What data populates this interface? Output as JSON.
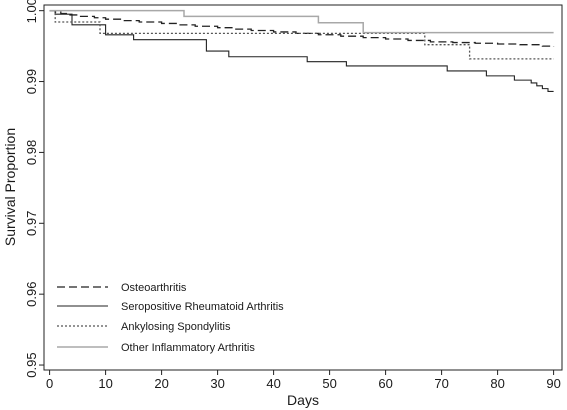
{
  "chart_data": {
    "type": "line",
    "subtype": "step",
    "title": "",
    "xlabel": "Days",
    "ylabel": "Survival Proportion",
    "xlim": [
      -1,
      91.5
    ],
    "ylim": [
      0.9493,
      1.0008
    ],
    "xticks": [
      0,
      10,
      20,
      30,
      40,
      50,
      60,
      70,
      80,
      90
    ],
    "yticks": [
      0.95,
      0.96,
      0.97,
      0.98,
      0.99,
      1.0
    ],
    "ytick_labels": [
      "0.95",
      "0.96",
      "0.97",
      "0.98",
      "0.99",
      "1.00"
    ],
    "grid": false,
    "legend_position": "bottom-left",
    "series": [
      {
        "name": "Osteoarthritis",
        "color": "#222222",
        "dash": "8,4",
        "width": 1.3,
        "x": [
          0,
          1,
          2,
          3,
          5,
          8,
          10,
          13,
          16,
          20,
          23,
          26,
          30,
          33,
          36,
          40,
          44,
          48,
          52,
          56,
          60,
          64,
          68,
          72,
          76,
          80,
          84,
          88,
          90
        ],
        "y": [
          1.0,
          0.9998,
          0.9996,
          0.9994,
          0.9992,
          0.999,
          0.9988,
          0.9986,
          0.9984,
          0.9982,
          0.998,
          0.9978,
          0.9976,
          0.9974,
          0.9972,
          0.997,
          0.9968,
          0.9966,
          0.9964,
          0.9962,
          0.996,
          0.9958,
          0.9956,
          0.9955,
          0.9954,
          0.9953,
          0.9952,
          0.995,
          0.9949
        ]
      },
      {
        "name": "Seropositive Rheumatoid Arthritis",
        "color": "#222222",
        "dash": "",
        "width": 1.1,
        "x": [
          0,
          1,
          4,
          10,
          15,
          28,
          32,
          46,
          53,
          71,
          78,
          83,
          86,
          87,
          88,
          89,
          90
        ],
        "y": [
          1.0,
          0.9995,
          0.998,
          0.9966,
          0.9959,
          0.9943,
          0.9935,
          0.9928,
          0.9922,
          0.9915,
          0.9908,
          0.9902,
          0.9898,
          0.9894,
          0.989,
          0.9886,
          0.9886
        ]
      },
      {
        "name": "Ankylosing Spondylitis",
        "color": "#555555",
        "dash": "2,2",
        "width": 1.3,
        "x": [
          0,
          1,
          2,
          9,
          67,
          75,
          90
        ],
        "y": [
          1.0,
          0.9984,
          0.9984,
          0.9968,
          0.9952,
          0.9932,
          0.9932
        ]
      },
      {
        "name": "Other Inflammatory Arthritis",
        "color": "#a8a8a8",
        "dash": "",
        "width": 1.5,
        "x": [
          0,
          24,
          48,
          56,
          90
        ],
        "y": [
          1.0,
          0.9992,
          0.9983,
          0.9969,
          0.9969
        ]
      }
    ]
  }
}
